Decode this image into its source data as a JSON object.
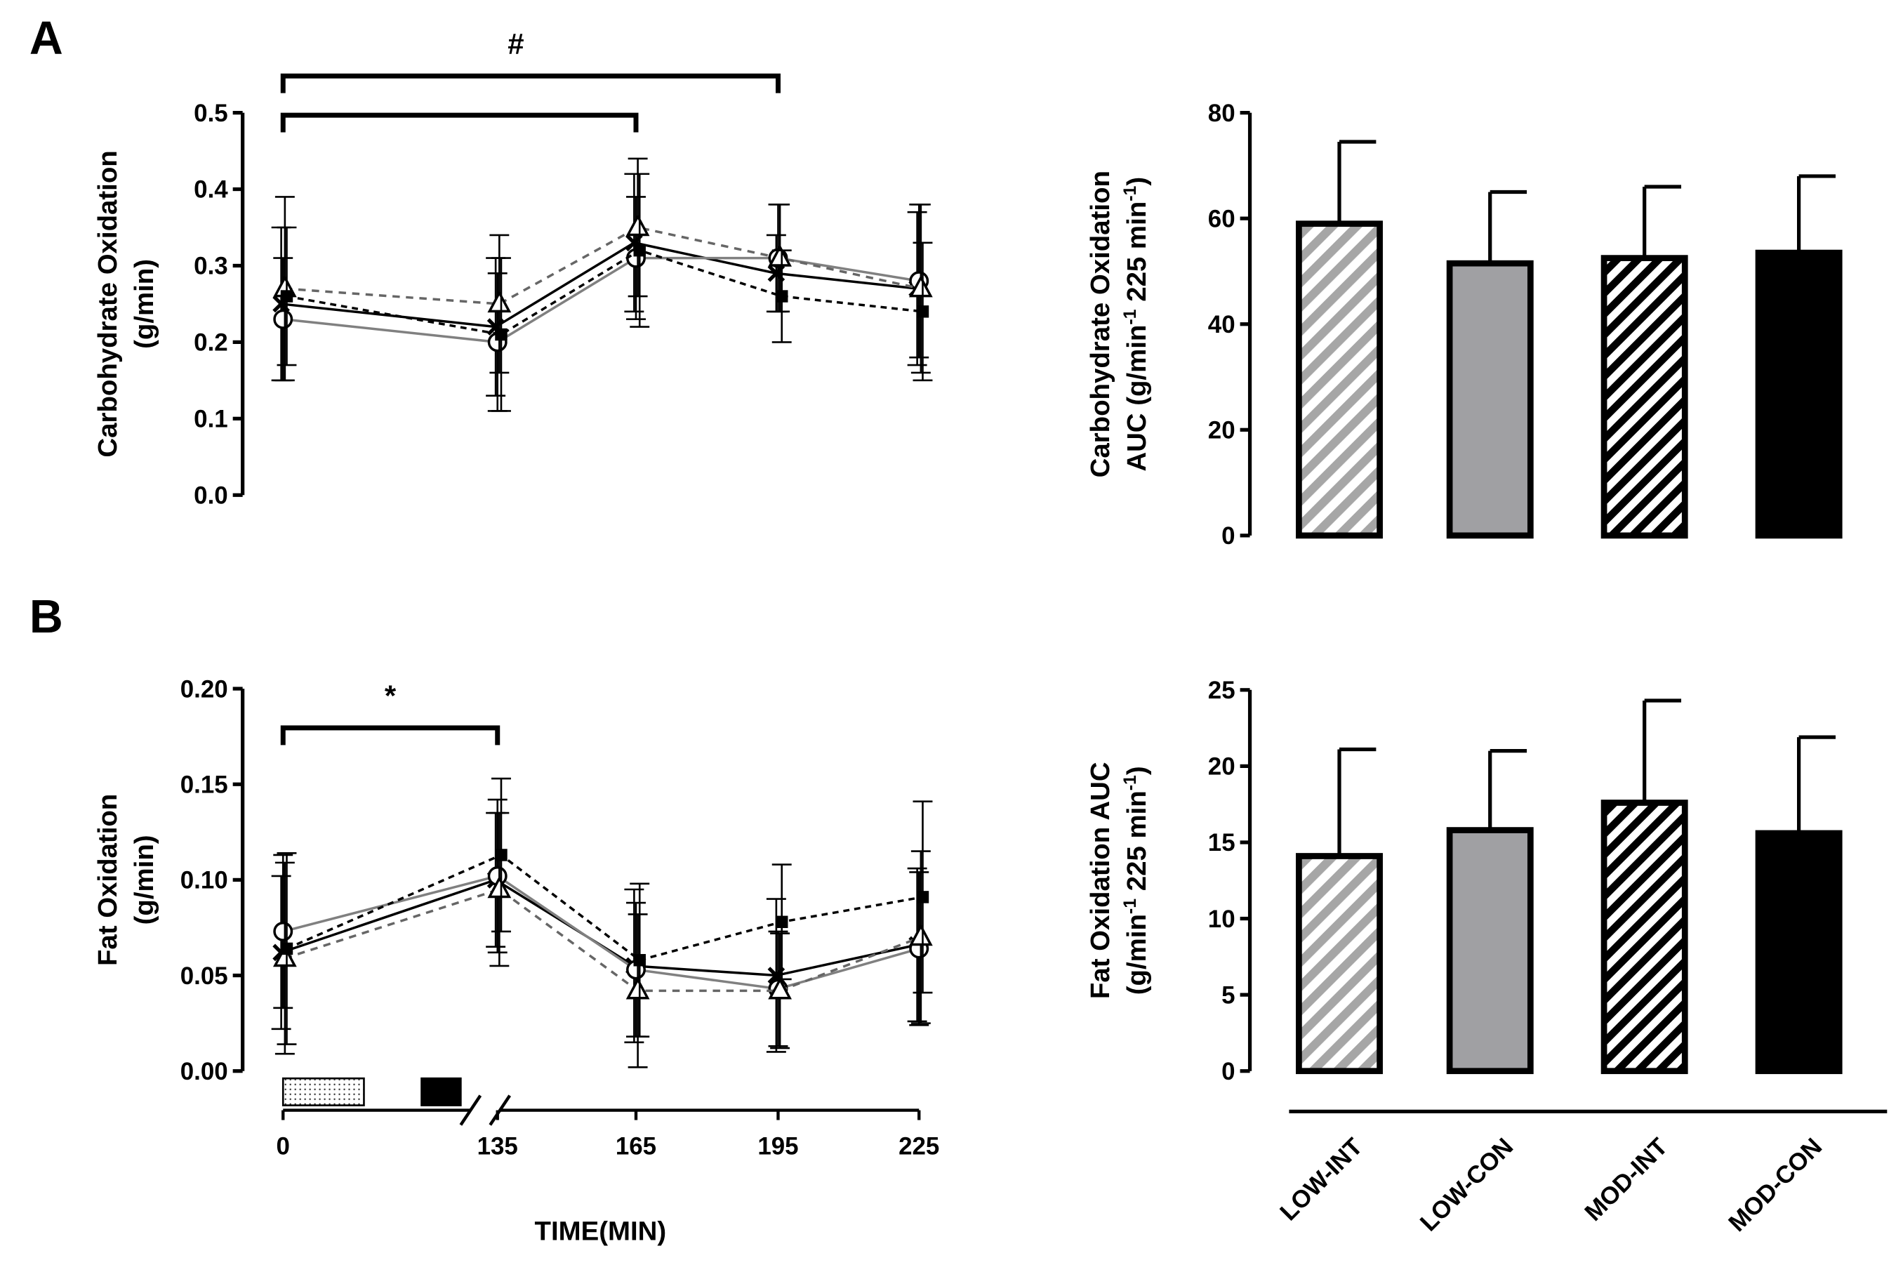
{
  "panels": {
    "A": "A",
    "B": "B"
  },
  "annotations": {
    "hash": "#",
    "star": "*"
  },
  "x_axis_label": "TIME(MIN)",
  "colors": {
    "black": "#000000",
    "gray": "#808080",
    "dark_gray": "#555555",
    "light_gray_hatch": "#a6a6a6",
    "bar_gray": "#a0a0a3"
  },
  "chart_data": [
    {
      "id": "cho-line",
      "type": "line",
      "ylabel_lines": [
        "Carbohydrate Oxidation",
        "(g/min)"
      ],
      "xlabel": "TIME(MIN)",
      "x": [
        0,
        135,
        165,
        195,
        225
      ],
      "x_tick_labels": [
        "0",
        "135",
        "165",
        "195",
        "225"
      ],
      "ylim": [
        0,
        0.5
      ],
      "y_ticks": [
        "0.0",
        "0.1",
        "0.2",
        "0.3",
        "0.4",
        "0.5"
      ],
      "series": [
        {
          "values": [
            0.25,
            0.22,
            0.33,
            0.29,
            0.27
          ],
          "sd": [
            0.1,
            0.09,
            0.09,
            0.05,
            0.1
          ]
        },
        {
          "values": [
            0.23,
            0.2,
            0.31,
            0.31,
            0.28
          ],
          "sd": [
            0.08,
            0.09,
            0.08,
            0.07,
            0.1
          ]
        },
        {
          "values": [
            0.27,
            0.25,
            0.35,
            0.31,
            0.27
          ],
          "sd": [
            0.12,
            0.09,
            0.09,
            0.07,
            0.11
          ]
        },
        {
          "values": [
            0.26,
            0.21,
            0.32,
            0.26,
            0.24
          ],
          "sd": [
            0.09,
            0.1,
            0.1,
            0.06,
            0.09
          ]
        }
      ],
      "brackets": [
        {
          "from": 0,
          "to": 195,
          "label": "#"
        },
        {
          "from": 0,
          "to": 165,
          "label": ""
        }
      ]
    },
    {
      "id": "cho-auc",
      "type": "bar",
      "ylabel_lines": [
        "Carbohydrate Oxidation",
        "AUC (g/min-1 225 min-1)"
      ],
      "categories": [
        "LOW-INT",
        "LOW-CON",
        "MOD-INT",
        "MOD-CON"
      ],
      "values": [
        59,
        51.5,
        52.5,
        53.5
      ],
      "errors": [
        15.5,
        13.5,
        13.5,
        14.5
      ],
      "ylim": [
        0,
        80
      ],
      "y_ticks": [
        "0",
        "20",
        "40",
        "60",
        "80"
      ]
    },
    {
      "id": "fat-line",
      "type": "line",
      "ylabel_lines": [
        "Fat Oxidation",
        "(g/min)"
      ],
      "xlabel": "TIME(MIN)",
      "x": [
        0,
        135,
        165,
        195,
        225
      ],
      "x_tick_labels": [
        "0",
        "135",
        "165",
        "195",
        "225"
      ],
      "ylim": [
        0,
        0.2
      ],
      "y_ticks": [
        "0.00",
        "0.05",
        "0.10",
        "0.15",
        "0.20"
      ],
      "series": [
        {
          "values": [
            0.062,
            0.1,
            0.055,
            0.05,
            0.066
          ],
          "sd": [
            0.04,
            0.035,
            0.04,
            0.04,
            0.04
          ]
        },
        {
          "values": [
            0.073,
            0.102,
            0.053,
            0.043,
            0.064
          ],
          "sd": [
            0.04,
            0.04,
            0.035,
            0.03,
            0.04
          ]
        },
        {
          "values": [
            0.059,
            0.095,
            0.042,
            0.042,
            0.07
          ],
          "sd": [
            0.05,
            0.04,
            0.04,
            0.03,
            0.045
          ]
        },
        {
          "values": [
            0.064,
            0.113,
            0.058,
            0.078,
            0.091
          ],
          "sd": [
            0.05,
            0.04,
            0.04,
            0.03,
            0.05
          ]
        }
      ],
      "brackets": [
        {
          "from": 0,
          "to": 135,
          "label": "*"
        }
      ]
    },
    {
      "id": "fat-auc",
      "type": "bar",
      "ylabel_lines": [
        "Fat Oxidation AUC",
        "(g/min-1 225 min-1)"
      ],
      "categories": [
        "LOW-INT",
        "LOW-CON",
        "MOD-INT",
        "MOD-CON"
      ],
      "values": [
        14.1,
        15.8,
        17.6,
        15.6
      ],
      "errors": [
        7.0,
        5.2,
        6.7,
        6.3
      ],
      "ylim": [
        0,
        25
      ],
      "y_ticks": [
        "0",
        "5",
        "10",
        "15",
        "20",
        "25"
      ]
    }
  ]
}
